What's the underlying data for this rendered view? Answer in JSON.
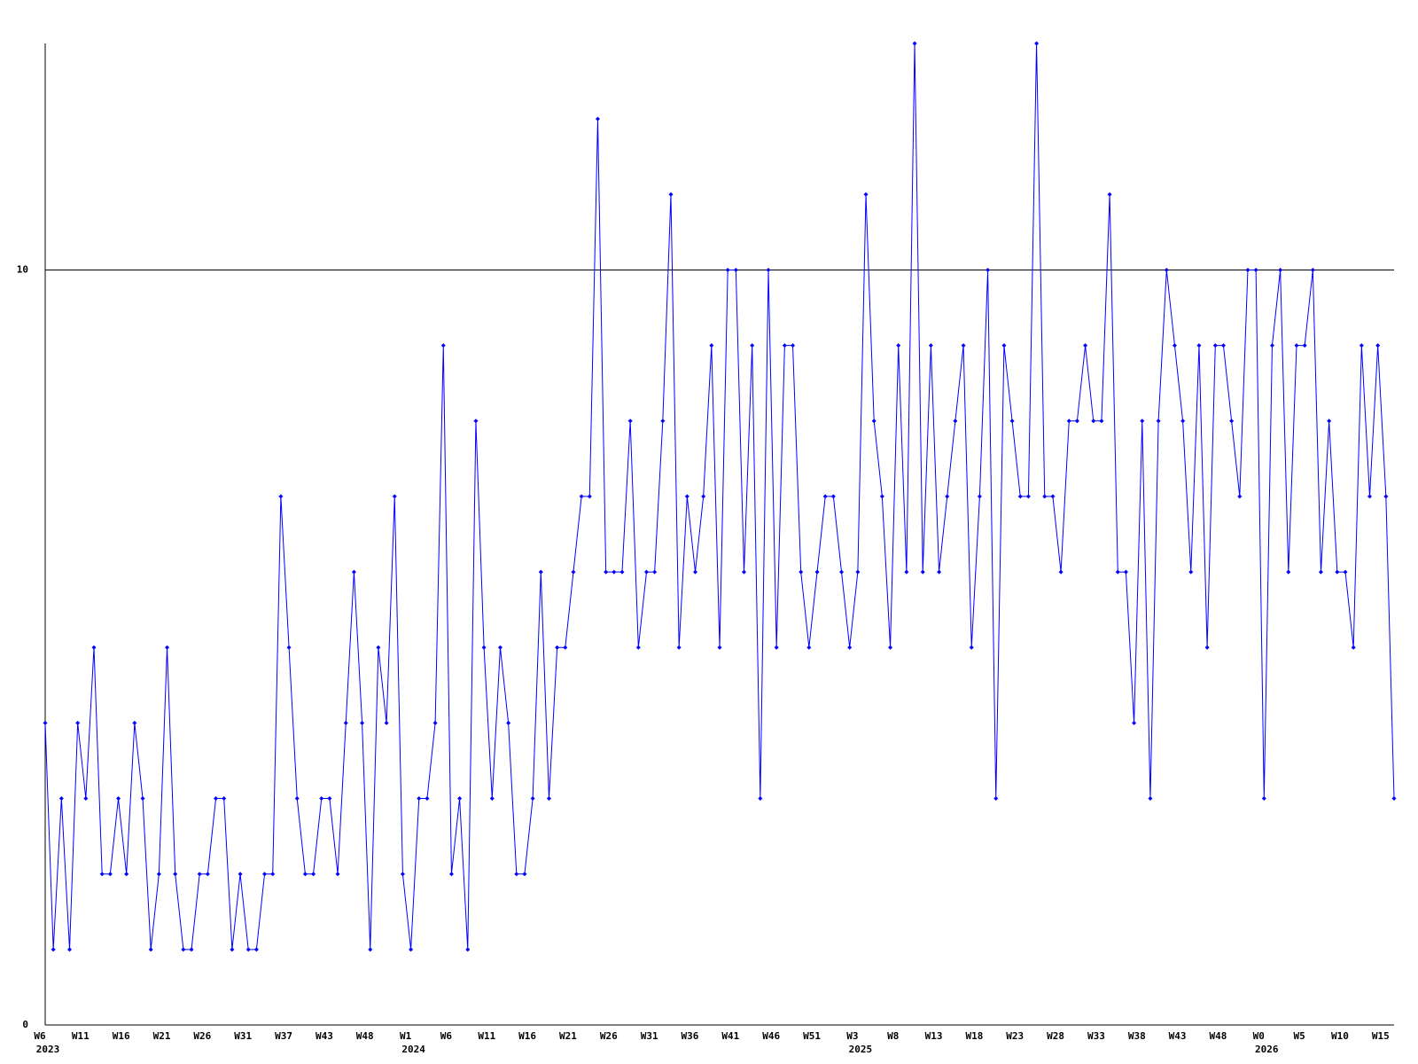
{
  "chart_data": {
    "type": "line",
    "categories": [
      "W6",
      null,
      null,
      null,
      null,
      "W11",
      null,
      null,
      null,
      null,
      "W16",
      null,
      null,
      null,
      null,
      "W21",
      null,
      null,
      null,
      null,
      "W26",
      null,
      null,
      null,
      null,
      "W31",
      null,
      null,
      null,
      null,
      "W37",
      null,
      null,
      null,
      null,
      "W43",
      null,
      null,
      null,
      null,
      "W48",
      null,
      null,
      null,
      null,
      "W1",
      null,
      null,
      null,
      null,
      "W6",
      null,
      null,
      null,
      null,
      "W11",
      null,
      null,
      null,
      null,
      "W16",
      null,
      null,
      null,
      null,
      "W21",
      null,
      null,
      null,
      null,
      "W26",
      null,
      null,
      null,
      null,
      "W31",
      null,
      null,
      null,
      null,
      "W36",
      null,
      null,
      null,
      null,
      "W41",
      null,
      null,
      null,
      null,
      "W46",
      null,
      null,
      null,
      null,
      "W51",
      null,
      null,
      null,
      null,
      "W3",
      null,
      null,
      null,
      null,
      "W8",
      null,
      null,
      null,
      null,
      "W13",
      null,
      null,
      null,
      null,
      "W18",
      null,
      null,
      null,
      null,
      "W23",
      null,
      null,
      null,
      null,
      "W28",
      null,
      null,
      null,
      null,
      "W33",
      null,
      null,
      null,
      null,
      "W38",
      null,
      null,
      null,
      null,
      "W43",
      null,
      null,
      null,
      null,
      "W48",
      null,
      null,
      null,
      null,
      "W0",
      null,
      null,
      null,
      null,
      "W5",
      null,
      null,
      null,
      null,
      "W10",
      null,
      null,
      null,
      null,
      "W15",
      null
    ],
    "x_secondary_labels": [
      "2023",
      null,
      null,
      null,
      null,
      null,
      null,
      null,
      null,
      null,
      null,
      null,
      null,
      null,
      null,
      null,
      null,
      null,
      null,
      null,
      null,
      null,
      null,
      null,
      null,
      null,
      null,
      null,
      null,
      null,
      null,
      null,
      null,
      null,
      null,
      null,
      null,
      null,
      null,
      null,
      null,
      null,
      null,
      null,
      null,
      "2024",
      null,
      null,
      null,
      null,
      null,
      null,
      null,
      null,
      null,
      null,
      null,
      null,
      null,
      null,
      null,
      null,
      null,
      null,
      null,
      null,
      null,
      null,
      null,
      null,
      null,
      null,
      null,
      null,
      null,
      null,
      null,
      null,
      null,
      null,
      null,
      null,
      null,
      null,
      null,
      null,
      null,
      null,
      null,
      null,
      null,
      null,
      null,
      null,
      null,
      null,
      null,
      null,
      null,
      null,
      "2025",
      null,
      null,
      null,
      null,
      null,
      null,
      null,
      null,
      null,
      null,
      null,
      null,
      null,
      null,
      null,
      null,
      null,
      null,
      null,
      null,
      null,
      null,
      null,
      null,
      null,
      null,
      null,
      null,
      null,
      null,
      null,
      null,
      null,
      null,
      null,
      null,
      null,
      null,
      null,
      null,
      null,
      null,
      null,
      null,
      null,
      null,
      null,
      null,
      null,
      "2026",
      null,
      null,
      null,
      null,
      null,
      null,
      null,
      null,
      null,
      null,
      null,
      null,
      null,
      null,
      null,
      null
    ],
    "series": [
      {
        "color": "#0000ff",
        "values": [
          4,
          1,
          3,
          1,
          4,
          3,
          5,
          2,
          2,
          3,
          2,
          4,
          3,
          1,
          2,
          5,
          2,
          1,
          1,
          2,
          2,
          3,
          3,
          1,
          2,
          1,
          1,
          2,
          2,
          7,
          5,
          3,
          2,
          2,
          3,
          3,
          2,
          4,
          6,
          4,
          1,
          5,
          4,
          7,
          2,
          1,
          3,
          3,
          4,
          9,
          2,
          3,
          1,
          8,
          5,
          3,
          5,
          4,
          2,
          2,
          3,
          6,
          3,
          5,
          5,
          6,
          7,
          7,
          12,
          6,
          6,
          6,
          8,
          5,
          6,
          6,
          8,
          11,
          5,
          7,
          6,
          7,
          9,
          5,
          10,
          10,
          6,
          9,
          3,
          10,
          5,
          9,
          9,
          6,
          5,
          6,
          7,
          7,
          6,
          5,
          6,
          11,
          8,
          7,
          5,
          9,
          6,
          13,
          6,
          9,
          6,
          7,
          8,
          9,
          5,
          7,
          10,
          3,
          9,
          8,
          7,
          7,
          13,
          7,
          7,
          6,
          8,
          8,
          9,
          8,
          8,
          11,
          6,
          6,
          4,
          8,
          3,
          8,
          10,
          9,
          8,
          6,
          9,
          5,
          9,
          9,
          8,
          7,
          10,
          10,
          3,
          9,
          10,
          6,
          9,
          9,
          10,
          6,
          8,
          6,
          6,
          5,
          9,
          7,
          9,
          7,
          3
        ]
      }
    ],
    "ylim": [
      0,
      13
    ],
    "yticks": [
      0,
      10
    ],
    "grid": true
  }
}
